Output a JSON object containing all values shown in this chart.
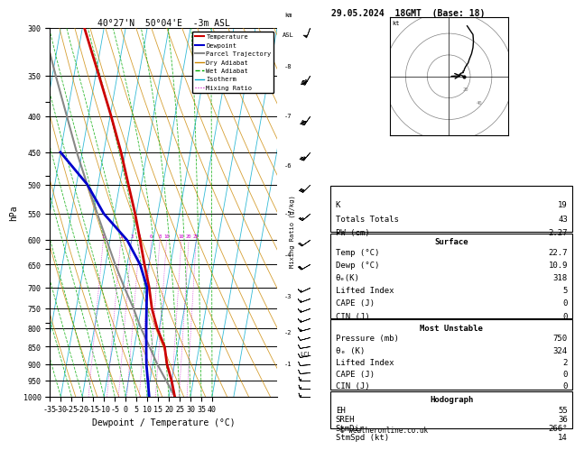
{
  "title_left": "40°27'N  50°04'E  -3m ASL",
  "title_right": "29.05.2024  18GMT  (Base: 18)",
  "xlabel": "Dewpoint / Temperature (°C)",
  "ylabel_left": "hPa",
  "bg_color": "#ffffff",
  "temp_color": "#cc0000",
  "dewp_color": "#0000cc",
  "parcel_color": "#888888",
  "dry_adiabat_color": "#cc8800",
  "wet_adiabat_color": "#00aa00",
  "isotherm_color": "#00aacc",
  "mixing_color": "#cc00cc",
  "xmin": -35,
  "xmax": 40,
  "pmin": 300,
  "pmax": 1000,
  "pressure_levels": [
    300,
    350,
    400,
    450,
    500,
    550,
    600,
    650,
    700,
    750,
    800,
    850,
    900,
    950,
    1000
  ],
  "temp_profile": {
    "pressure": [
      1000,
      950,
      900,
      850,
      800,
      750,
      700,
      650,
      600,
      550,
      500,
      450,
      400,
      350,
      300
    ],
    "temp": [
      22.7,
      20.0,
      16.5,
      14.0,
      9.0,
      5.0,
      2.0,
      -2.0,
      -6.0,
      -10.5,
      -16.0,
      -22.0,
      -29.5,
      -38.5,
      -49.0
    ]
  },
  "dewp_profile": {
    "pressure": [
      1000,
      950,
      900,
      850,
      800,
      750,
      700,
      650,
      600,
      550,
      500,
      450
    ],
    "temp": [
      10.9,
      9.0,
      7.0,
      5.5,
      4.0,
      2.5,
      1.0,
      -4.0,
      -12.0,
      -25.0,
      -35.0,
      -50.0
    ]
  },
  "parcel_profile": {
    "pressure": [
      1000,
      950,
      900,
      850,
      800,
      750,
      700,
      650,
      600,
      550,
      500,
      450,
      400,
      350,
      300
    ],
    "temp": [
      22.7,
      17.5,
      12.0,
      7.0,
      1.5,
      -3.5,
      -9.5,
      -15.5,
      -21.5,
      -28.0,
      -35.0,
      -42.5,
      -50.0,
      -58.5,
      -68.0
    ]
  },
  "mixing_ratios": [
    1,
    2,
    3,
    4,
    6,
    8,
    10,
    16,
    20,
    25
  ],
  "km_ticks": {
    "km": [
      1,
      2,
      3,
      4,
      5,
      6,
      7,
      8
    ],
    "pressure": [
      900,
      810,
      720,
      630,
      550,
      470,
      400,
      340
    ]
  },
  "lcl_pressure": 870,
  "wind_barbs_right": {
    "pressure": [
      1000,
      975,
      950,
      925,
      900,
      875,
      850,
      825,
      800,
      775,
      750,
      725,
      700,
      650,
      600,
      550,
      500,
      450,
      400,
      350,
      300
    ],
    "speed": [
      14,
      14,
      14,
      12,
      12,
      10,
      10,
      12,
      14,
      14,
      15,
      15,
      16,
      18,
      22,
      25,
      30,
      35,
      40,
      45,
      50
    ],
    "direction": [
      270,
      270,
      270,
      265,
      265,
      260,
      260,
      255,
      255,
      250,
      250,
      250,
      245,
      240,
      235,
      230,
      225,
      220,
      215,
      210,
      200
    ]
  },
  "table_data": {
    "K": 19,
    "Totals Totals": 43,
    "PW_cm": 2.27,
    "Temp_C": 22.7,
    "Dewp_C": 10.9,
    "theta_e_K": 318,
    "Lifted_Index": 5,
    "CAPE_J": 0,
    "CIN_J": 0,
    "MU_Pressure_mb": 750,
    "MU_theta_e_K": 324,
    "MU_Lifted_Index": 2,
    "MU_CAPE_J": 0,
    "MU_CIN_J": 0,
    "EH": 55,
    "SREH": 36,
    "StmDir": 266,
    "StmSpd_kt": 14
  }
}
